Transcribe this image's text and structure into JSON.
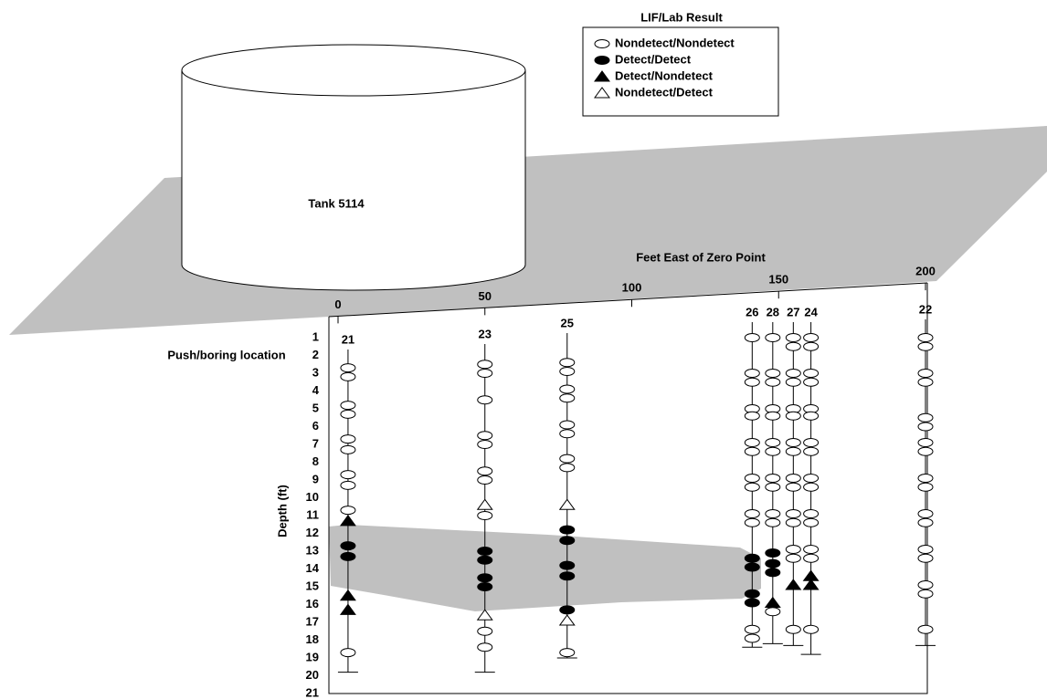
{
  "legend": {
    "title": "LIF/Lab Result",
    "items": [
      {
        "label": "Nondetect/Nondetect",
        "marker": "oval",
        "filled": false
      },
      {
        "label": "Detect/Detect",
        "marker": "oval",
        "filled": true
      },
      {
        "label": "Detect/Nondetect",
        "marker": "triangle",
        "filled": true
      },
      {
        "label": "Nondetect/Detect",
        "marker": "triangle",
        "filled": false
      }
    ]
  },
  "tank_label": "Tank 5114",
  "x_axis": {
    "title": "Feet East of Zero Point",
    "lim": [
      0,
      200
    ],
    "ticks": [
      0,
      50,
      100,
      150,
      200
    ]
  },
  "y_axis": {
    "title": "Depth (ft)",
    "lim": [
      1,
      21
    ],
    "ticks": [
      1,
      2,
      3,
      4,
      5,
      6,
      7,
      8,
      9,
      10,
      11,
      12,
      13,
      14,
      15,
      16,
      17,
      18,
      19,
      20,
      21
    ]
  },
  "boring_axis_label": "Push/boring location",
  "borings": [
    {
      "label": "21",
      "x": 3.4,
      "bottom": 19.8,
      "depths": [
        [
          2.7,
          3.2,
          4.8,
          5.3,
          6.7,
          7.3,
          8.7,
          9.3,
          10.7,
          18.7
        ],
        [
          12.7,
          13.3
        ],
        [
          11.3,
          15.5,
          16.3
        ],
        []
      ]
    },
    {
      "label": "23",
      "x": 50,
      "bottom": 19.8,
      "depths": [
        [
          2.5,
          3.0,
          4.5,
          6.5,
          7.0,
          8.5,
          9.0,
          11.0,
          17.5,
          18.4
        ],
        [
          13.0,
          13.5,
          14.5,
          15.0
        ],
        [],
        [
          10.4,
          16.6
        ]
      ]
    },
    {
      "label": "25",
      "x": 78,
      "bottom": 19.0,
      "depths": [
        [
          2.4,
          2.9,
          3.9,
          4.4,
          5.9,
          6.4,
          7.8,
          8.3,
          18.7
        ],
        [
          11.8,
          12.4,
          13.8,
          14.4,
          16.3
        ],
        [],
        [
          10.4,
          16.9
        ]
      ]
    },
    {
      "label": "26",
      "x": 141,
      "bottom": 18.4,
      "depths": [
        [
          1.0,
          3.0,
          3.5,
          5.0,
          5.4,
          6.9,
          7.4,
          8.9,
          9.4,
          10.9,
          11.4,
          17.4,
          17.9
        ],
        [
          13.4,
          13.9,
          15.4,
          15.9
        ],
        [],
        []
      ]
    },
    {
      "label": "28",
      "x": 148,
      "bottom": 18.2,
      "depths": [
        [
          1.0,
          3.0,
          3.5,
          5.0,
          5.4,
          6.9,
          7.4,
          8.9,
          9.4,
          10.9,
          11.4,
          16.4
        ],
        [
          13.1,
          13.7,
          14.2
        ],
        [
          15.9
        ],
        []
      ]
    },
    {
      "label": "27",
      "x": 155,
      "bottom": 18.3,
      "depths": [
        [
          1.0,
          1.5,
          3.0,
          3.5,
          5.0,
          5.4,
          6.9,
          7.4,
          8.9,
          9.4,
          10.9,
          11.4,
          12.9,
          13.4,
          17.4
        ],
        [],
        [
          14.9
        ],
        []
      ]
    },
    {
      "label": "24",
      "x": 161,
      "bottom": 18.8,
      "depths": [
        [
          1.0,
          1.5,
          3.0,
          3.5,
          5.0,
          5.4,
          6.9,
          7.4,
          8.9,
          9.4,
          10.9,
          11.4,
          12.9,
          13.4,
          17.4
        ],
        [],
        [
          14.4,
          14.9
        ],
        []
      ]
    },
    {
      "label": "22",
      "x": 200,
      "bottom": 18.3,
      "depths": [
        [
          1.0,
          1.5,
          3.0,
          3.5,
          5.5,
          6.0,
          6.9,
          7.4,
          8.9,
          9.4,
          10.9,
          11.4,
          12.9,
          13.4,
          14.9,
          15.4,
          17.4
        ],
        [],
        [],
        []
      ]
    }
  ]
}
